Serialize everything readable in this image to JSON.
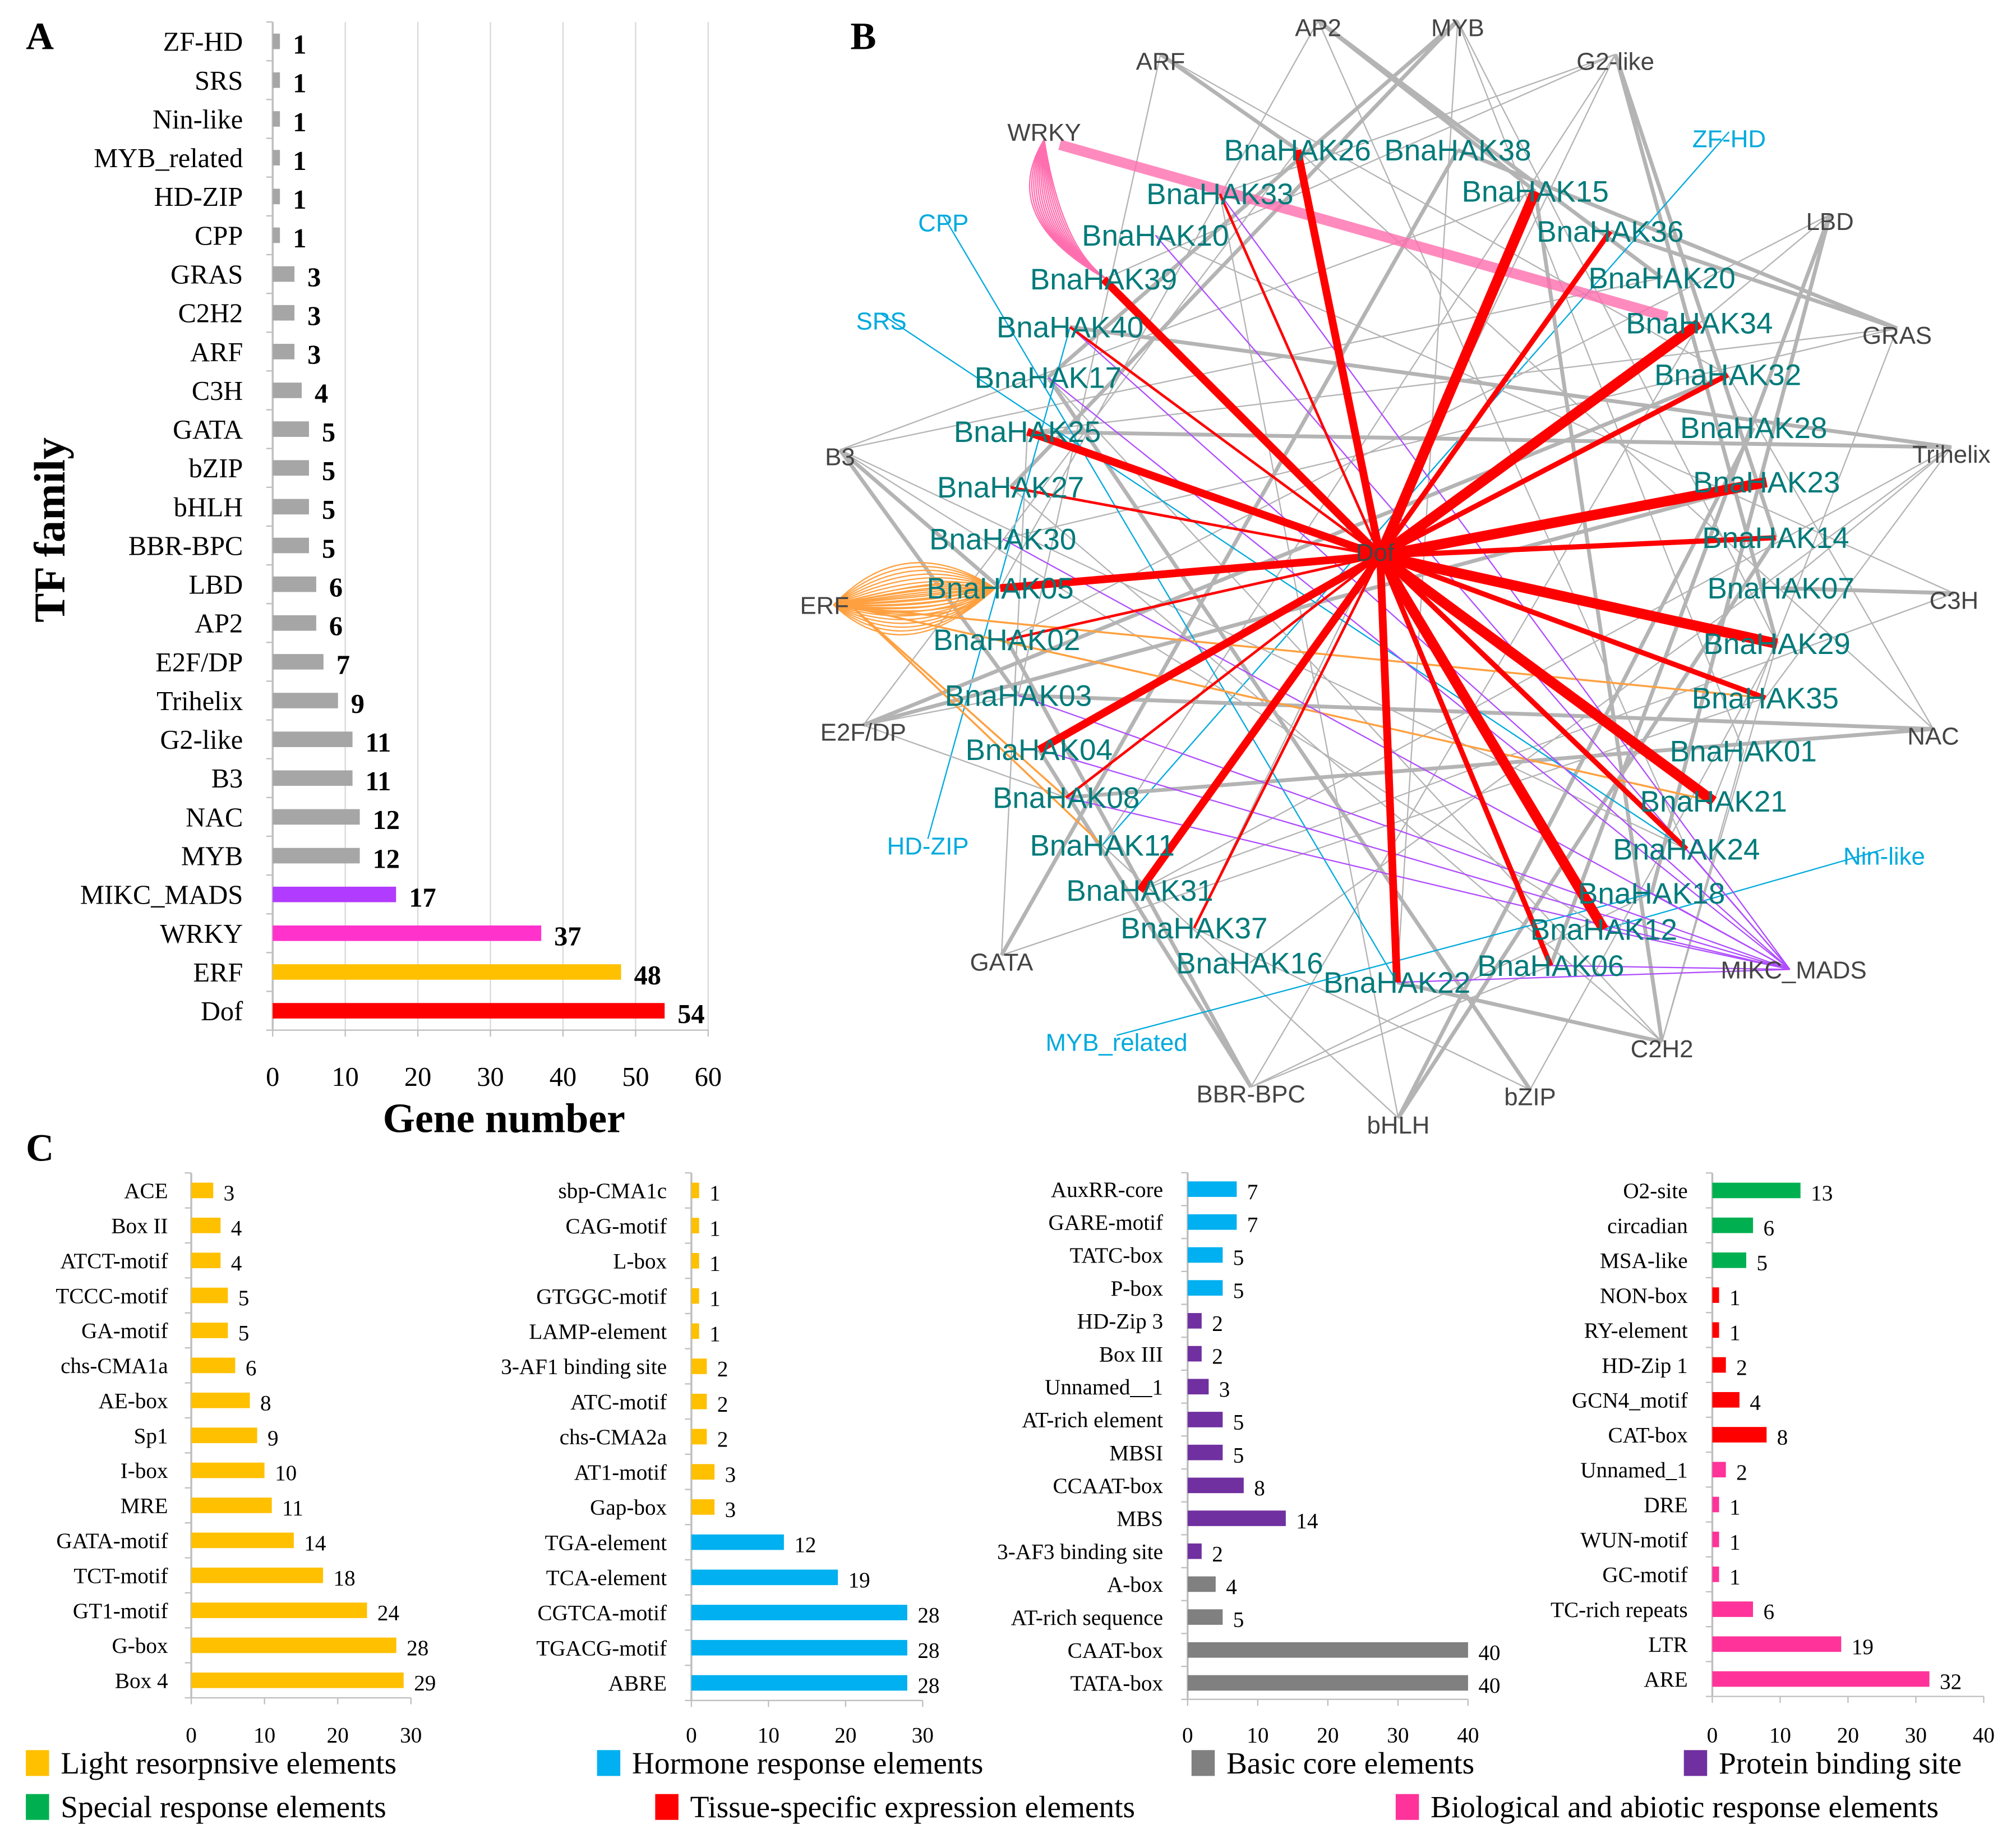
{
  "panels": {
    "a": "A",
    "b": "B",
    "c": "C"
  },
  "colors": {
    "gray": "#A6A6A6",
    "purple_a": "#B13BFF",
    "pink_a": "#FF33CC",
    "gold": "#FFC000",
    "red": "#FF0000",
    "blue": "#00B0F0",
    "core_gray": "#808080",
    "protein_purple": "#7030A0",
    "green": "#00B050",
    "bio_pink": "#FF3399",
    "gene_label": "#007A7A",
    "tf_cyan": "#00AADD",
    "edge_gray": "#B4B4B4",
    "edge_orange": "#FFA040",
    "edge_pink": "#FF6FAF",
    "edge_purple": "#B04DFF"
  },
  "chart_data": [
    {
      "type": "bar",
      "panel": "A",
      "orientation": "horizontal",
      "xlabel": "Gene number",
      "ylabel": "TF family",
      "xlim": [
        0,
        60
      ],
      "xticks": [
        0,
        10,
        20,
        30,
        40,
        50,
        60
      ],
      "grid": true,
      "categories": [
        "ZF-HD",
        "SRS",
        "Nin-like",
        "MYB_related",
        "HD-ZIP",
        "CPP",
        "GRAS",
        "C2H2",
        "ARF",
        "C3H",
        "GATA",
        "bZIP",
        "bHLH",
        "BBR-BPC",
        "LBD",
        "AP2",
        "E2F/DP",
        "Trihelix",
        "G2-like",
        "B3",
        "NAC",
        "MYB",
        "MIKC_MADS",
        "WRKY",
        "ERF",
        "Dof"
      ],
      "values": [
        1,
        1,
        1,
        1,
        1,
        1,
        3,
        3,
        3,
        4,
        5,
        5,
        5,
        5,
        6,
        6,
        7,
        9,
        11,
        11,
        12,
        12,
        17,
        37,
        48,
        54
      ],
      "bar_colors": [
        "gray",
        "gray",
        "gray",
        "gray",
        "gray",
        "gray",
        "gray",
        "gray",
        "gray",
        "gray",
        "gray",
        "gray",
        "gray",
        "gray",
        "gray",
        "gray",
        "gray",
        "gray",
        "gray",
        "gray",
        "gray",
        "gray",
        "purple_a",
        "pink_a",
        "gold",
        "red"
      ]
    },
    {
      "type": "network",
      "panel": "B",
      "hub": "Dof",
      "tf_nodes": [
        "ARF",
        "AP2",
        "MYB",
        "G2-like",
        "ZF-HD",
        "LBD",
        "GRAS",
        "Trihelix",
        "C3H",
        "NAC",
        "Nin-like",
        "MIKC_MADS",
        "C2H2",
        "bZIP",
        "bHLH",
        "BBR-BPC",
        "MYB_related",
        "GATA",
        "HD-ZIP",
        "E2F/DP",
        "ERF",
        "B3",
        "SRS",
        "CPP",
        "WRKY",
        "Dof"
      ],
      "tf_highlighted": [
        "ZF-HD",
        "Nin-like",
        "MYB_related",
        "HD-ZIP",
        "SRS",
        "CPP"
      ],
      "gene_nodes": [
        "BnaHAK26",
        "BnaHAK38",
        "BnaHAK33",
        "BnaHAK15",
        "BnaHAK10",
        "BnaHAK36",
        "BnaHAK39",
        "BnaHAK20",
        "BnaHAK40",
        "BnaHAK34",
        "BnaHAK17",
        "BnaHAK32",
        "BnaHAK25",
        "BnaHAK28",
        "BnaHAK27",
        "BnaHAK23",
        "BnaHAK30",
        "BnaHAK14",
        "BnaHAK05",
        "BnaHAK07",
        "BnaHAK02",
        "BnaHAK29",
        "BnaHAK03",
        "BnaHAK35",
        "BnaHAK04",
        "BnaHAK01",
        "BnaHAK08",
        "BnaHAK21",
        "BnaHAK11",
        "BnaHAK24",
        "BnaHAK31",
        "BnaHAK18",
        "BnaHAK37",
        "BnaHAK12",
        "BnaHAK16",
        "BnaHAK06",
        "BnaHAK22"
      ]
    },
    {
      "type": "bar",
      "panel": "C1",
      "orientation": "horizontal",
      "xlim": [
        0,
        30
      ],
      "xticks": [
        0,
        10,
        20,
        30
      ],
      "categories": [
        "ACE",
        "Box II",
        "ATCT-motif",
        "TCCC-motif",
        "GA-motif",
        "chs-CMA1a",
        "AE-box",
        "Sp1",
        "I-box",
        "MRE",
        "GATA-motif",
        "TCT-motif",
        "GT1-motif",
        "G-box",
        "Box 4"
      ],
      "values": [
        3,
        4,
        4,
        5,
        5,
        6,
        8,
        9,
        10,
        11,
        14,
        18,
        24,
        28,
        29
      ],
      "bar_colors": [
        "gold",
        "gold",
        "gold",
        "gold",
        "gold",
        "gold",
        "gold",
        "gold",
        "gold",
        "gold",
        "gold",
        "gold",
        "gold",
        "gold",
        "gold"
      ]
    },
    {
      "type": "bar",
      "panel": "C2",
      "orientation": "horizontal",
      "xlim": [
        0,
        30
      ],
      "xticks": [
        0,
        10,
        20,
        30
      ],
      "categories": [
        "sbp-CMA1c",
        "CAG-motif",
        "L-box",
        "GTGGC-motif",
        "LAMP-element",
        "3-AF1 binding site",
        "ATC-motif",
        "chs-CMA2a",
        "AT1-motif",
        "Gap-box",
        "TGA-element",
        "TCA-element",
        "CGTCA-motif",
        "TGACG-motif",
        "ABRE"
      ],
      "values": [
        1,
        1,
        1,
        1,
        1,
        2,
        2,
        2,
        3,
        3,
        12,
        19,
        28,
        28,
        28
      ],
      "bar_colors": [
        "gold",
        "gold",
        "gold",
        "gold",
        "gold",
        "gold",
        "gold",
        "gold",
        "gold",
        "gold",
        "blue",
        "blue",
        "blue",
        "blue",
        "blue"
      ]
    },
    {
      "type": "bar",
      "panel": "C3",
      "orientation": "horizontal",
      "xlim": [
        0,
        40
      ],
      "xticks": [
        0,
        10,
        20,
        30,
        40
      ],
      "categories": [
        "AuxRR-core",
        "GARE-motif",
        "TATC-box",
        "P-box",
        "HD-Zip 3",
        "Box III",
        "Unnamed__1",
        "AT-rich element",
        "MBSI",
        "CCAAT-box",
        "MBS",
        "3-AF3 binding site",
        "A-box",
        "AT-rich sequence",
        "CAAT-box",
        "TATA-box"
      ],
      "values": [
        7,
        7,
        5,
        5,
        2,
        2,
        3,
        5,
        5,
        8,
        14,
        2,
        4,
        5,
        40,
        40
      ],
      "bar_colors": [
        "blue",
        "blue",
        "blue",
        "blue",
        "protein_purple",
        "protein_purple",
        "protein_purple",
        "protein_purple",
        "protein_purple",
        "protein_purple",
        "protein_purple",
        "protein_purple",
        "core_gray",
        "core_gray",
        "core_gray",
        "core_gray"
      ]
    },
    {
      "type": "bar",
      "panel": "C4",
      "orientation": "horizontal",
      "xlim": [
        0,
        40
      ],
      "xticks": [
        0,
        10,
        20,
        30,
        40
      ],
      "categories": [
        "O2-site",
        "circadian",
        "MSA-like",
        "NON-box",
        "RY-element",
        "HD-Zip 1",
        "GCN4_motif",
        "CAT-box",
        "Unnamed_1",
        "DRE",
        "WUN-motif",
        "GC-motif",
        "TC-rich repeats",
        "LTR",
        "ARE"
      ],
      "values": [
        13,
        6,
        5,
        1,
        1,
        2,
        4,
        8,
        2,
        1,
        1,
        1,
        6,
        19,
        32
      ],
      "bar_colors": [
        "green",
        "green",
        "green",
        "red",
        "red",
        "red",
        "red",
        "red",
        "bio_pink",
        "bio_pink",
        "bio_pink",
        "bio_pink",
        "bio_pink",
        "bio_pink",
        "bio_pink"
      ]
    }
  ],
  "legend": [
    {
      "label": "Light resorpnsive elements",
      "color": "gold"
    },
    {
      "label": "Hormone response elements",
      "color": "blue"
    },
    {
      "label": "Basic core elements",
      "color": "core_gray"
    },
    {
      "label": "Protein binding site",
      "color": "protein_purple"
    },
    {
      "label": "Special response elements",
      "color": "green"
    },
    {
      "label": "Tissue-specific expression elements",
      "color": "red"
    },
    {
      "label": "Biological and abiotic response elements",
      "color": "bio_pink"
    }
  ]
}
